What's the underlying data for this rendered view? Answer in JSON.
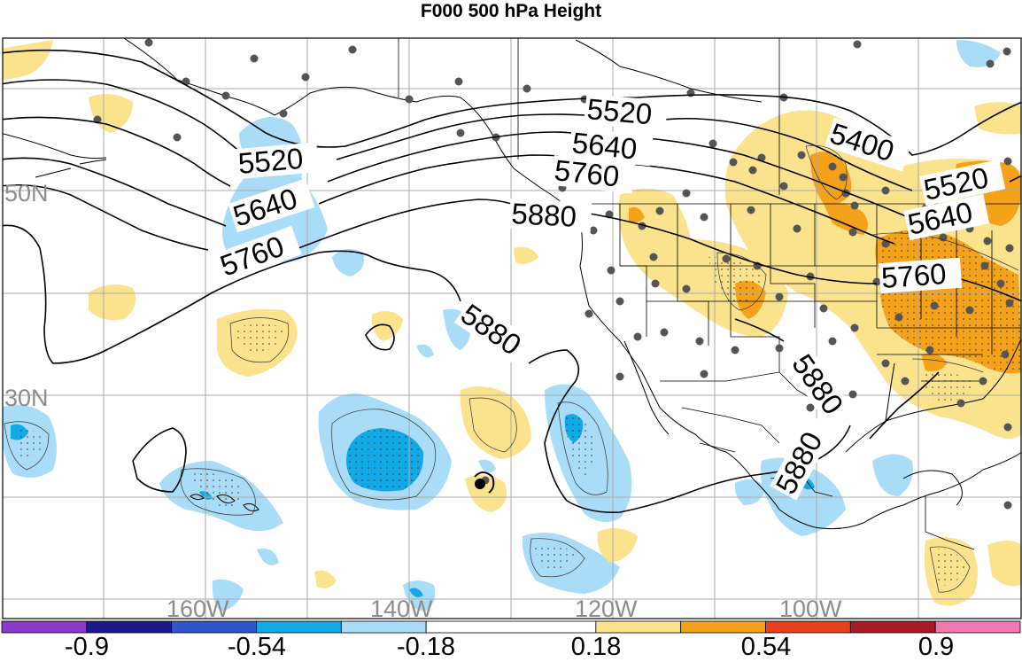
{
  "title": "F000 500 hPa Height",
  "contour_labels": [
    "5520",
    "5640",
    "5760",
    "5880",
    "5400"
  ],
  "lat_labels": [
    "50N",
    "30N"
  ],
  "lon_labels": [
    "160W",
    "140W",
    "120W",
    "100W"
  ],
  "colorbar": {
    "labels": [
      "-0.9",
      "-0.54",
      "-0.18",
      "0.18",
      "0.54",
      "0.9"
    ],
    "colors": [
      "#8a3ac8",
      "#1a1a8c",
      "#3355cc",
      "#11aae6",
      "#a9dcf7",
      "#ffffff",
      "#fbe38d",
      "#f5a21b",
      "#e3421a",
      "#a61b22",
      "#f07ab0"
    ]
  },
  "colors": {
    "grid": "#aaaaaa",
    "coast": "#000000",
    "light_blue": "#a9dcf7",
    "mid_blue": "#11aae6",
    "light_yellow": "#fbe38d",
    "orange": "#f5a21b",
    "station": "#555555"
  }
}
